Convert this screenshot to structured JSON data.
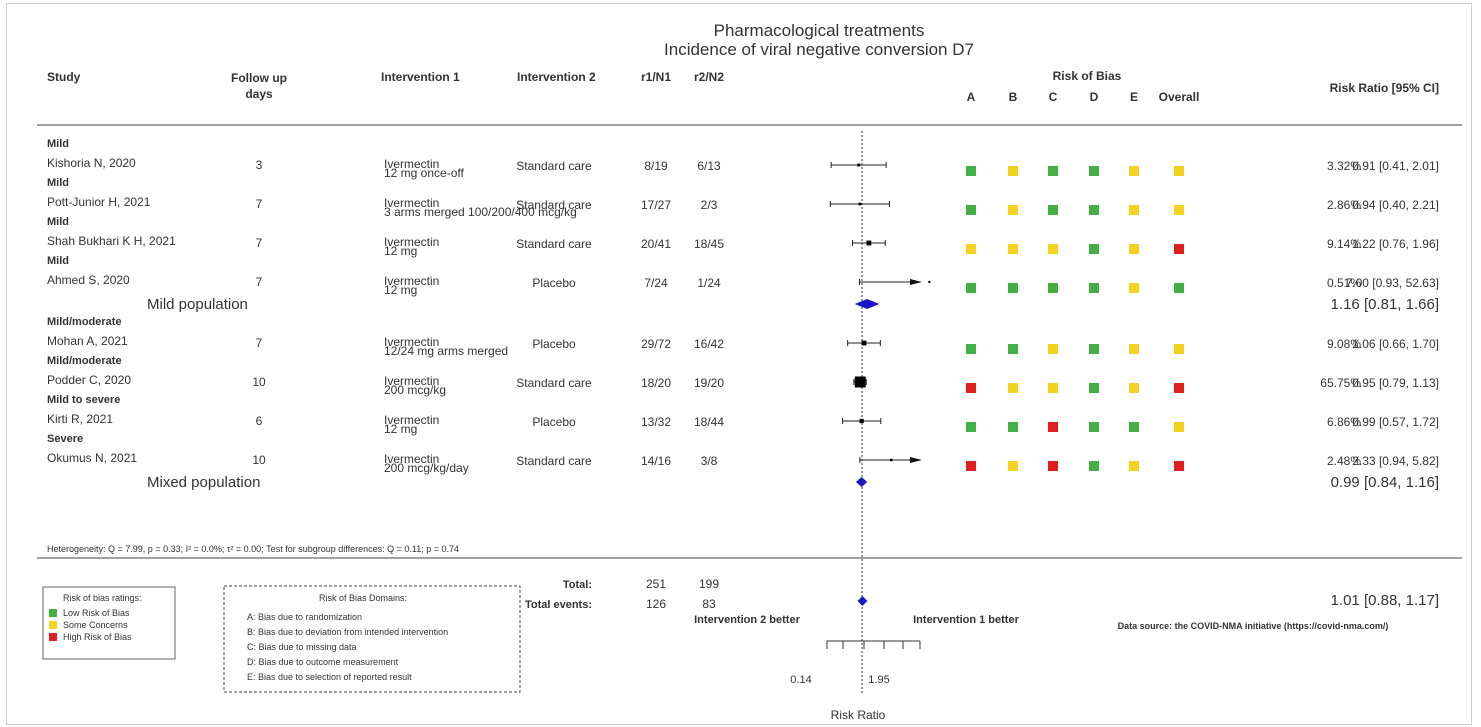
{
  "chart_data": {
    "type": "forest",
    "title": "Pharmacological treatments",
    "subtitle": "Incidence of viral negative conversion D7",
    "columns": {
      "study": "Study",
      "follow_up": "Follow up days",
      "intervention1": "Intervention 1",
      "intervention2": "Intervention 2",
      "r1n1": "r1/N1",
      "r2n2": "r2/N2",
      "rob_title": "Risk of Bias",
      "rob_domains": [
        "A",
        "B",
        "C",
        "D",
        "E",
        "Overall"
      ],
      "effect": "Risk Ratio [95% CI]"
    },
    "subgroups": [
      {
        "label": "Mild population",
        "pooled": {
          "rr": 1.16,
          "lo": 0.81,
          "hi": 1.66,
          "text": "1.16 [0.81, 1.66]"
        },
        "studies": [
          {
            "severity": "Mild",
            "study": "Kishoria N, 2020",
            "follow_up": "3",
            "intervention1": "Ivermectin",
            "dose": "12 mg once-off",
            "intervention2": "Standard care",
            "r1n1": "8/19",
            "r2n2": "6/13",
            "weight": "3.32%",
            "rr": 0.91,
            "lo": 0.41,
            "hi": 2.01,
            "ci_text": "0.91 [0.41, 2.01]",
            "rob": [
              "L",
              "S",
              "L",
              "L",
              "S",
              "S"
            ]
          },
          {
            "severity": "Mild",
            "study": "Pott-Junior H, 2021",
            "follow_up": "7",
            "intervention1": "Ivermectin",
            "dose": "3 arms merged 100/200/400 mcg/kg",
            "intervention2": "Standard care",
            "r1n1": "17/27",
            "r2n2": "2/3",
            "weight": "2.86%",
            "rr": 0.94,
            "lo": 0.4,
            "hi": 2.21,
            "ci_text": "0.94 [0.40, 2.21]",
            "rob": [
              "L",
              "S",
              "L",
              "L",
              "S",
              "S"
            ]
          },
          {
            "severity": "Mild",
            "study": "Shah Bukhari K H, 2021",
            "follow_up": "7",
            "intervention1": "Ivermectin",
            "dose": "12 mg",
            "intervention2": "Standard care",
            "r1n1": "20/41",
            "r2n2": "18/45",
            "weight": "9.14%",
            "rr": 1.22,
            "lo": 0.76,
            "hi": 1.96,
            "ci_text": "1.22 [0.76, 1.96]",
            "rob": [
              "S",
              "S",
              "S",
              "L",
              "S",
              "H"
            ]
          },
          {
            "severity": "Mild",
            "study": "Ahmed S, 2020",
            "follow_up": "7",
            "intervention1": "Ivermectin",
            "dose": "12 mg",
            "intervention2": "Placebo",
            "r1n1": "7/24",
            "r2n2": "1/24",
            "weight": "0.51%",
            "rr": 7.0,
            "lo": 0.93,
            "hi": 52.63,
            "ci_text": "7.00 [0.93, 52.63]",
            "rob": [
              "L",
              "L",
              "L",
              "L",
              "S",
              "L"
            ]
          }
        ]
      },
      {
        "label": "Mixed population",
        "pooled": {
          "rr": 0.99,
          "lo": 0.84,
          "hi": 1.16,
          "text": "0.99 [0.84, 1.16]"
        },
        "studies": [
          {
            "severity": "Mild/moderate",
            "study": "Mohan A, 2021",
            "follow_up": "7",
            "intervention1": "Ivermectin",
            "dose": "12/24 mg arms merged",
            "intervention2": "Placebo",
            "r1n1": "29/72",
            "r2n2": "16/42",
            "weight": "9.08%",
            "rr": 1.06,
            "lo": 0.66,
            "hi": 1.7,
            "ci_text": "1.06 [0.66, 1.70]",
            "rob": [
              "L",
              "L",
              "S",
              "L",
              "S",
              "S"
            ]
          },
          {
            "severity": "Mild/moderate",
            "study": "Podder C, 2020",
            "follow_up": "10",
            "intervention1": "Ivermectin",
            "dose": "200 mcg/kg",
            "intervention2": "Standard care",
            "r1n1": "18/20",
            "r2n2": "19/20",
            "weight": "65.75%",
            "rr": 0.95,
            "lo": 0.79,
            "hi": 1.13,
            "ci_text": "0.95 [0.79, 1.13]",
            "rob": [
              "H",
              "S",
              "S",
              "L",
              "S",
              "H"
            ]
          },
          {
            "severity": "Mild to severe",
            "study": "Kirti R, 2021",
            "follow_up": "6",
            "intervention1": "Ivermectin",
            "dose": "12 mg",
            "intervention2": "Placebo",
            "r1n1": "13/32",
            "r2n2": "18/44",
            "weight": "6.86%",
            "rr": 0.99,
            "lo": 0.57,
            "hi": 1.72,
            "ci_text": "0.99 [0.57, 1.72]",
            "rob": [
              "L",
              "L",
              "H",
              "L",
              "L",
              "S"
            ]
          },
          {
            "severity": "Severe",
            "study": "Okumus N, 2021",
            "follow_up": "10",
            "intervention1": "Ivermectin",
            "dose": "200 mcg/kg/day",
            "intervention2": "Standard care",
            "r1n1": "14/16",
            "r2n2": "3/8",
            "weight": "2.48%",
            "rr": 2.33,
            "lo": 0.94,
            "hi": 5.82,
            "ci_text": "2.33 [0.94, 5.82]",
            "rob": [
              "H",
              "S",
              "H",
              "L",
              "S",
              "H"
            ]
          }
        ]
      }
    ],
    "heterogeneity": "Heterogeneity: Q = 7.99, p = 0.33; I² = 0.0%; τ² = 0.00; Test for subgroup differences: Q = 0.11; p = 0.74",
    "total": {
      "label": "Total:",
      "events_label": "Total events:",
      "n1": "251",
      "n2": "199",
      "e1": "126",
      "e2": "83",
      "rr": 1.01,
      "lo": 0.88,
      "hi": 1.17,
      "text": "1.01 [0.88, 1.17]"
    },
    "favours_left": "Intervention 2 better",
    "favours_right": "Intervention 1 better",
    "x_axis": {
      "label": "Risk Ratio",
      "scale": "log",
      "ticks": [
        0.14,
        1.95
      ],
      "tick_labels": [
        "0.14",
        "1.95"
      ],
      "reference": 1
    },
    "data_source": "Data source: the COVID-NMA initiative (https://covid-nma.com/)",
    "rob_legend": {
      "title": "Risk of bias ratings:",
      "items": [
        {
          "key": "L",
          "label": "Low Risk of Bias",
          "color": "#44b044"
        },
        {
          "key": "S",
          "label": "Some Concerns",
          "color": "#f5d21f"
        },
        {
          "key": "H",
          "label": "High Risk of Bias",
          "color": "#e01e1e"
        }
      ]
    },
    "rob_domains_legend": {
      "title": "Risk of Bias Domains:",
      "items": [
        "A: Bias due to randomization",
        "B: Bias due to deviation from intended intervention",
        "C: Bias due to missing data",
        "D: Bias due to outcome measurement",
        "E: Bias due to selection of reported result"
      ]
    },
    "colors": {
      "title": "#2b2bb8",
      "diamond": "#1818c8",
      "source": "#2020c0"
    }
  }
}
